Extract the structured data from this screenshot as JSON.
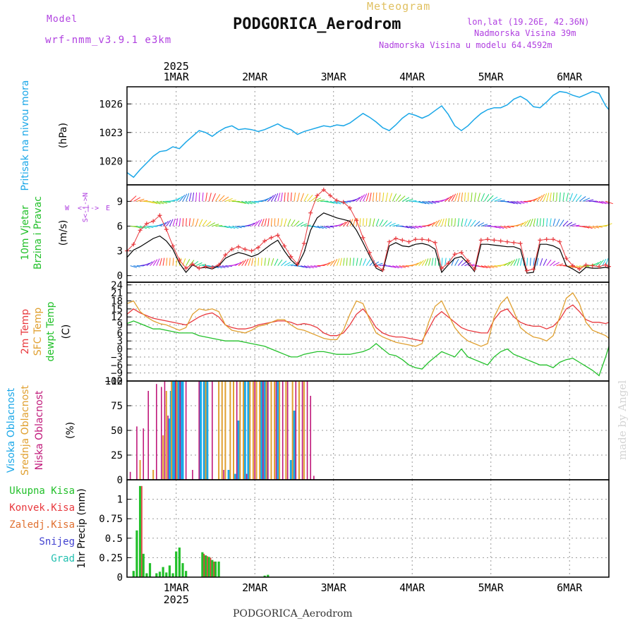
{
  "header": {
    "title": "Meteogram",
    "station": "PODGORICA_Aerodrom",
    "model_label": "Model",
    "model_name": "wrf-nmm_v3.9.1 e3km",
    "lonlat": "lon,lat (19.26E, 42.36N)",
    "altitude": "Nadmorska Visina 39m",
    "model_altitude": "Nadmorska Visina u modelu 64.4592m",
    "year": "2025",
    "footer_station": "PODGORICA_Aerodrom",
    "watermark": "made by Angel"
  },
  "colors": {
    "pressure": "#1aa7e8",
    "temp2m": "#e8383d",
    "sfc": "#e0a030",
    "dewpt": "#22c02a",
    "high_cloud": "#1aa7e8",
    "mid_cloud": "#e0a030",
    "low_cloud": "#c0187a",
    "total_precip": "#22c02a",
    "conv_precip": "#e8383d",
    "frozen_precip": "#e07030",
    "snow": "#4040d0",
    "hail": "#22c0b0",
    "label_purple": "#b040e0",
    "title_orange": "#e0c060"
  },
  "time_axis": {
    "day_labels": [
      "1MAR",
      "2MAR",
      "3MAR",
      "4MAR",
      "5MAR",
      "6MAR"
    ],
    "day_offsets_hours": [
      0,
      24,
      48,
      72,
      96,
      120
    ],
    "start_hour": -15,
    "end_hour": 132
  },
  "chart_data": [
    {
      "type": "line",
      "name": "pressure",
      "ylabel_main": "Pritisak na nivou mora",
      "ylabel_unit": "(hPa)",
      "ylim": [
        1017.5,
        1027.8
      ],
      "y_ticks": [
        1020,
        1023,
        1026
      ],
      "x_hours": [
        -15,
        -13,
        -11,
        -9,
        -7,
        -5,
        -3,
        -1,
        1,
        3,
        5,
        7,
        9,
        11,
        13,
        15,
        17,
        19,
        21,
        23,
        25,
        27,
        29,
        31,
        33,
        35,
        37,
        39,
        41,
        43,
        45,
        47,
        49,
        51,
        53,
        55,
        57,
        59,
        61,
        63,
        65,
        67,
        69,
        71,
        73,
        75,
        77,
        79,
        81,
        83,
        85,
        87,
        89,
        91,
        93,
        95,
        97,
        99,
        101,
        103,
        105,
        107,
        109,
        111,
        113,
        115,
        117,
        119,
        121,
        123,
        125,
        127,
        129,
        131,
        132
      ],
      "values": [
        1018.8,
        1018.3,
        1019.1,
        1019.8,
        1020.5,
        1021,
        1021.1,
        1021.5,
        1021.3,
        1022,
        1022.6,
        1023.2,
        1023.0,
        1022.6,
        1023.1,
        1023.5,
        1023.7,
        1023.3,
        1023.4,
        1023.3,
        1023.1,
        1023.3,
        1023.6,
        1023.9,
        1023.5,
        1023.3,
        1022.8,
        1023.1,
        1023.3,
        1023.5,
        1023.7,
        1023.6,
        1023.8,
        1023.7,
        1024.0,
        1024.5,
        1025.0,
        1024.6,
        1024.1,
        1023.5,
        1023.2,
        1023.8,
        1024.5,
        1025.0,
        1024.8,
        1024.5,
        1024.8,
        1025.3,
        1025.8,
        1024.9,
        1023.7,
        1023.2,
        1023.7,
        1024.4,
        1025.0,
        1025.4,
        1025.6,
        1025.6,
        1025.9,
        1026.5,
        1026.8,
        1026.4,
        1025.7,
        1025.6,
        1026.2,
        1026.9,
        1027.3,
        1027.2,
        1026.9,
        1026.7,
        1027.0,
        1027.3,
        1027.1,
        1025.8,
        1025.4
      ],
      "series_names": [
        "Pritisak na nivou mora"
      ]
    },
    {
      "type": "line",
      "name": "wind",
      "ylabel_main": "10m Vjetar",
      "ylabel_sub": "Brzina i Pravac",
      "ylabel_unit": "(m/s)",
      "compass": {
        "n": "N",
        "s": "S",
        "w": "W",
        "e": "E",
        "arrow": "<-|->"
      },
      "ylim": [
        -0.8,
        11
      ],
      "y_ticks": [
        0,
        3,
        6,
        9
      ],
      "x_hours": [
        -15,
        -13,
        -11,
        -9,
        -7,
        -5,
        -3,
        -1,
        1,
        3,
        5,
        7,
        9,
        11,
        13,
        15,
        17,
        19,
        21,
        23,
        25,
        27,
        29,
        31,
        33,
        35,
        37,
        39,
        41,
        43,
        45,
        47,
        49,
        51,
        53,
        55,
        57,
        59,
        61,
        63,
        65,
        67,
        69,
        71,
        73,
        75,
        77,
        79,
        81,
        83,
        85,
        87,
        89,
        91,
        93,
        95,
        97,
        99,
        101,
        103,
        105,
        107,
        109,
        111,
        113,
        115,
        117,
        119,
        121,
        123,
        125,
        127,
        129,
        131,
        132
      ],
      "speed_mean": [
        2.2,
        3.1,
        3.5,
        4.0,
        4.5,
        4.8,
        4.2,
        3.2,
        1.5,
        0.4,
        1.3,
        0.9,
        1.0,
        0.8,
        1.2,
        2.1,
        2.5,
        2.8,
        2.6,
        2.3,
        2.6,
        3.2,
        3.8,
        4.3,
        3.0,
        1.9,
        1.2,
        2.8,
        5.5,
        7.0,
        7.6,
        7.3,
        7.0,
        6.8,
        6.6,
        5.5,
        4.0,
        2.4,
        0.9,
        0.5,
        3.6,
        4.0,
        3.6,
        3.5,
        3.8,
        3.9,
        3.7,
        3.2,
        0.4,
        1.3,
        2.1,
        2.3,
        1.5,
        0.5,
        3.8,
        3.8,
        3.7,
        3.6,
        3.5,
        3.5,
        3.2,
        0.3,
        0.4,
        3.8,
        3.8,
        3.6,
        3.2,
        1.2,
        0.8,
        0.3,
        1.0,
        0.9,
        0.9,
        1.0,
        0.9
      ],
      "gust": [
        3.0,
        3.8,
        5.5,
        6.3,
        6.6,
        7.3,
        5.6,
        3.6,
        1.9,
        0.9,
        1.4,
        0.9,
        1.1,
        1.0,
        1.3,
        2.5,
        3.2,
        3.5,
        3.2,
        3.0,
        3.4,
        4.2,
        4.6,
        4.9,
        3.6,
        2.3,
        1.4,
        3.9,
        7.6,
        9.7,
        10.4,
        9.7,
        9.1,
        8.9,
        8.2,
        6.7,
        4.6,
        2.8,
        1.2,
        0.7,
        4.1,
        4.5,
        4.3,
        4.1,
        4.4,
        4.4,
        4.3,
        4.0,
        0.9,
        1.5,
        2.6,
        2.8,
        1.8,
        0.8,
        4.3,
        4.4,
        4.3,
        4.2,
        4.1,
        4.0,
        3.9,
        0.6,
        0.8,
        4.3,
        4.4,
        4.4,
        4.1,
        2.1,
        1.2,
        0.8,
        1.3,
        1.2,
        1.1,
        1.3,
        1.1
      ],
      "series_names": [
        "Wind speed (black)",
        "Gust (red +)"
      ]
    },
    {
      "type": "line",
      "name": "temperature",
      "ylabel_lines": [
        "2m Temp",
        "SFC Temp",
        "dewpt Temp"
      ],
      "ylabel_unit": "(C)",
      "ylim": [
        -12,
        25
      ],
      "y_ticks": [
        -12,
        -9,
        -6,
        -3,
        0,
        3,
        6,
        9,
        12,
        15,
        18,
        21,
        24
      ],
      "x_hours": [
        -15,
        -13,
        -11,
        -9,
        -7,
        -5,
        -3,
        -1,
        1,
        3,
        5,
        7,
        9,
        11,
        13,
        15,
        17,
        19,
        21,
        23,
        25,
        27,
        29,
        31,
        33,
        35,
        37,
        39,
        41,
        43,
        45,
        47,
        49,
        51,
        53,
        55,
        57,
        59,
        61,
        63,
        65,
        67,
        69,
        71,
        73,
        75,
        77,
        79,
        81,
        83,
        85,
        87,
        89,
        91,
        93,
        95,
        97,
        99,
        101,
        103,
        105,
        107,
        109,
        111,
        113,
        115,
        117,
        119,
        121,
        123,
        125,
        127,
        129,
        131,
        132
      ],
      "series": [
        {
          "name": "2m Temp",
          "values": [
            13,
            15,
            13.5,
            12.5,
            11.5,
            11,
            10.5,
            10,
            9.5,
            9,
            10.5,
            12,
            13,
            13.5,
            12,
            9,
            8,
            7.5,
            7.5,
            8,
            9,
            9.5,
            10,
            10.5,
            10.5,
            10,
            9,
            9.5,
            9,
            8,
            6,
            5,
            5,
            6,
            9,
            13,
            15,
            12,
            8,
            6,
            5,
            4.5,
            4.5,
            4,
            3.5,
            3,
            7.5,
            12,
            14,
            12,
            10,
            8,
            7,
            6.5,
            6,
            6,
            11,
            14,
            15,
            12,
            10,
            9,
            8.5,
            8.5,
            7.5,
            8.5,
            11,
            15,
            16.5,
            14,
            11,
            10,
            10,
            9.5,
            10
          ]
        },
        {
          "name": "SFC Temp",
          "values": [
            17,
            18,
            14,
            12,
            10.5,
            9.5,
            9,
            8,
            7,
            8,
            13,
            15,
            14.5,
            15,
            14,
            9,
            7,
            6.5,
            6,
            7,
            8.5,
            9,
            10,
            11,
            11,
            9,
            7.5,
            7,
            6,
            5,
            4,
            3.5,
            3.5,
            7,
            13,
            18,
            17,
            11,
            6,
            4.5,
            3.5,
            2.5,
            2,
            1.5,
            1,
            2,
            10,
            16,
            18,
            13,
            8,
            5,
            3,
            2,
            1,
            2,
            12,
            17,
            19.5,
            14,
            8,
            6,
            4.5,
            4,
            3,
            5,
            12,
            19,
            21,
            17,
            10,
            7,
            6,
            5,
            4
          ]
        },
        {
          "name": "dewpt Temp",
          "values": [
            9.5,
            10.5,
            9.5,
            8.5,
            7.5,
            7.5,
            7,
            6.5,
            6,
            6,
            6,
            5,
            4.5,
            4,
            3.5,
            3,
            3,
            3,
            2.5,
            2,
            1.5,
            1,
            0,
            -1,
            -2,
            -3,
            -3,
            -2,
            -1.5,
            -1,
            -1,
            -1.5,
            -2,
            -2,
            -2,
            -1.5,
            -1,
            0,
            2,
            0,
            -2,
            -2.5,
            -4,
            -6,
            -7,
            -7.5,
            -5,
            -3,
            -1,
            -2,
            -3,
            0,
            -3,
            -4,
            -5,
            -6,
            -3,
            -1,
            0,
            -2,
            -3,
            -4,
            -5,
            -6,
            -6,
            -7,
            -5,
            -4,
            -3.5,
            -5,
            -6.5,
            -8,
            -10,
            -3,
            1
          ]
        }
      ]
    },
    {
      "type": "bar",
      "name": "cloud_cover",
      "ylabel_lines": [
        "Visoka Oblacnost",
        "Srednja Oblacnost",
        "Niska Oblacnost"
      ],
      "ylabel_unit": "(%)",
      "ylim": [
        0,
        100
      ],
      "y_ticks": [
        0,
        25,
        50,
        75,
        100
      ],
      "series": [
        {
          "name": "Visoka Oblacnost",
          "x_hours": [
            -2,
            -1.6,
            -1,
            -0.6,
            0,
            0.4,
            1,
            1.6,
            2,
            7.5,
            8.5,
            9.5,
            16,
            18,
            19,
            21,
            22,
            26,
            27,
            27.5,
            31,
            35,
            36
          ],
          "values": [
            62,
            90,
            100,
            100,
            100,
            100,
            100,
            100,
            100,
            100,
            100,
            100,
            10,
            6,
            60,
            100,
            100,
            100,
            100,
            100,
            100,
            20,
            70
          ]
        },
        {
          "name": "Srednja Oblacnost",
          "x_hours": [
            -11,
            -7,
            -4,
            -3,
            -1.4,
            0.2,
            9,
            13,
            14,
            15,
            16.5,
            17.5,
            19.5,
            20.5,
            22.5,
            23.5,
            24.5,
            25.5,
            27.5,
            29,
            30,
            31.5,
            33.5,
            35.5,
            37.5,
            39
          ],
          "values": [
            20,
            10,
            45,
            90,
            100,
            100,
            100,
            100,
            100,
            100,
            100,
            100,
            100,
            100,
            100,
            100,
            100,
            100,
            100,
            100,
            100,
            100,
            100,
            100,
            100,
            100
          ]
        },
        {
          "name": "Niska Oblacnost",
          "x_hours": [
            -14,
            -12,
            -10,
            -8.5,
            -6,
            -4.5,
            -3.5,
            -2.5,
            -0.2,
            1.2,
            3,
            5,
            7,
            11,
            14.5,
            18.5,
            21.5,
            24,
            26.5,
            28,
            30.5,
            32.5,
            34,
            36.5,
            38.5,
            40,
            41,
            42
          ],
          "values": [
            8,
            54,
            52,
            90,
            97,
            94,
            100,
            65,
            100,
            100,
            100,
            10,
            100,
            100,
            10,
            100,
            6,
            100,
            100,
            100,
            100,
            100,
            100,
            100,
            100,
            100,
            85,
            4
          ]
        }
      ]
    },
    {
      "type": "bar",
      "name": "precipitation",
      "ylabel_unit": "1hr Precip (mm)",
      "legend": [
        "Ukupna Kisa",
        "Konvek.Kisa",
        "Zaledj.Kisa",
        "Snijeg",
        "Grad"
      ],
      "ylim": [
        0,
        1.25
      ],
      "y_ticks": [
        0,
        0.25,
        0.5,
        0.75,
        1
      ],
      "x_hours": [
        -13,
        -12,
        -11,
        -10,
        -9,
        -8,
        -6,
        -5,
        -4,
        -3,
        -2,
        -1,
        0,
        1,
        2,
        3,
        4,
        8,
        9,
        10,
        11,
        12,
        13,
        27,
        28
      ],
      "values": [
        0.08,
        0.6,
        1.17,
        0.3,
        0.05,
        0.18,
        0.05,
        0.07,
        0.13,
        0.06,
        0.15,
        0.05,
        0.33,
        0.38,
        0.18,
        0.08,
        0.0,
        0.32,
        0.28,
        0.26,
        0.22,
        0.2,
        0.2,
        0.02,
        0.03
      ],
      "convective": [
        0,
        0,
        1.17,
        0,
        0,
        0,
        0,
        0,
        0,
        0,
        0,
        0,
        0,
        0,
        0,
        0,
        0,
        0.3,
        0.27,
        0.25,
        0.2,
        0,
        0,
        0,
        0
      ]
    }
  ]
}
